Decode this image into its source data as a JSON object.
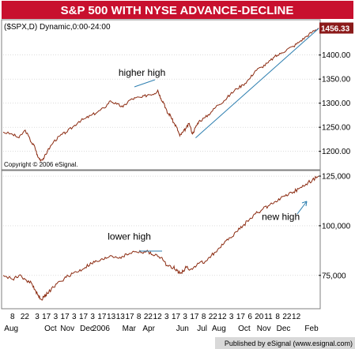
{
  "title": "S&P 500 WITH NYSE ADVANCE-DECLINE",
  "footer": "Published by eSignal (www.esignal.com)",
  "colors": {
    "title_bg": "#c8102e",
    "price_line": "#8b2a10",
    "trend_line": "#2e7fb0",
    "last_label_bg": "#8b1a1a",
    "panel_border": "#7f7f7f",
    "grid": "#c8c8c8"
  },
  "chart_data": [
    {
      "type": "line",
      "panel": "S&P 500 price",
      "header_text": "($SPX,D) Dynamic,0:00-24:00",
      "copyright": "Copyright © 2006 eSignal.",
      "last_value_label": "1456.33",
      "ylim": [
        1165,
        1470
      ],
      "y_ticks": [
        1200.0,
        1250.0,
        1300.0,
        1350.0,
        1400.0
      ],
      "y_tick_labels": [
        "1200.00",
        "1250.00",
        "1300.00",
        "1350.00",
        "1400.00"
      ],
      "x_range": [
        0,
        100
      ],
      "series": [
        {
          "values": [
            [
              0,
              1240
            ],
            [
              3,
              1235
            ],
            [
              5,
              1228
            ],
            [
              7,
              1244
            ],
            [
              9,
              1218
            ],
            [
              10,
              1210
            ],
            [
              11,
              1188
            ],
            [
              12,
              1182
            ],
            [
              13,
              1187
            ],
            [
              14,
              1200
            ],
            [
              16,
              1220
            ],
            [
              18,
              1232
            ],
            [
              20,
              1240
            ],
            [
              22,
              1250
            ],
            [
              24,
              1262
            ],
            [
              26,
              1268
            ],
            [
              28,
              1275
            ],
            [
              30,
              1282
            ],
            [
              32,
              1290
            ],
            [
              34,
              1305
            ],
            [
              36,
              1298
            ],
            [
              38,
              1292
            ],
            [
              40,
              1306
            ],
            [
              42,
              1311
            ],
            [
              44,
              1312
            ],
            [
              46,
              1318
            ],
            [
              48,
              1320
            ],
            [
              49,
              1327
            ],
            [
              50,
              1310
            ],
            [
              51,
              1300
            ],
            [
              52,
              1280
            ],
            [
              53,
              1275
            ],
            [
              54,
              1260
            ],
            [
              55,
              1250
            ],
            [
              56,
              1232
            ],
            [
              57,
              1240
            ],
            [
              58,
              1248
            ],
            [
              59,
              1258
            ],
            [
              60,
              1236
            ],
            [
              61,
              1250
            ],
            [
              62,
              1262
            ],
            [
              64,
              1270
            ],
            [
              66,
              1282
            ],
            [
              68,
              1296
            ],
            [
              70,
              1305
            ],
            [
              72,
              1318
            ],
            [
              74,
              1330
            ],
            [
              76,
              1338
            ],
            [
              78,
              1350
            ],
            [
              80,
              1368
            ],
            [
              82,
              1375
            ],
            [
              84,
              1384
            ],
            [
              86,
              1396
            ],
            [
              88,
              1403
            ],
            [
              90,
              1412
            ],
            [
              92,
              1418
            ],
            [
              94,
              1428
            ],
            [
              96,
              1438
            ],
            [
              98,
              1448
            ],
            [
              100,
              1456
            ]
          ]
        }
      ],
      "annotations": [
        {
          "text": "higher high",
          "x": 44,
          "y": 1357
        }
      ],
      "trend_line": [
        [
          61,
          1228
        ],
        [
          100,
          1455
        ]
      ]
    },
    {
      "type": "line",
      "panel": "NYSE advance-decline",
      "ylim": [
        59000,
        127000
      ],
      "y_ticks": [
        75000,
        100000,
        125000
      ],
      "y_tick_labels": [
        "75,000",
        "100,000",
        "125,000"
      ],
      "x_range": [
        0,
        100
      ],
      "series": [
        {
          "values": [
            [
              0,
              75000
            ],
            [
              3,
              73000
            ],
            [
              5,
              75000
            ],
            [
              7,
              73000
            ],
            [
              9,
              71000
            ],
            [
              10,
              68000
            ],
            [
              11,
              65000
            ],
            [
              12,
              63000
            ],
            [
              13,
              64000
            ],
            [
              14,
              66000
            ],
            [
              16,
              69000
            ],
            [
              18,
              72000
            ],
            [
              20,
              74000
            ],
            [
              22,
              76000
            ],
            [
              24,
              77000
            ],
            [
              26,
              79000
            ],
            [
              28,
              81000
            ],
            [
              30,
              82000
            ],
            [
              32,
              83000
            ],
            [
              34,
              85000
            ],
            [
              36,
              84000
            ],
            [
              38,
              84500
            ],
            [
              40,
              86000
            ],
            [
              42,
              87000
            ],
            [
              44,
              86500
            ],
            [
              46,
              87000
            ],
            [
              48,
              85000
            ],
            [
              50,
              84000
            ],
            [
              52,
              80000
            ],
            [
              54,
              79000
            ],
            [
              55,
              78000
            ],
            [
              56,
              76000
            ],
            [
              57,
              77000
            ],
            [
              58,
              79000
            ],
            [
              60,
              78000
            ],
            [
              62,
              81000
            ],
            [
              64,
              82000
            ],
            [
              66,
              85000
            ],
            [
              68,
              88000
            ],
            [
              70,
              91000
            ],
            [
              72,
              94000
            ],
            [
              74,
              97000
            ],
            [
              76,
              100000
            ],
            [
              78,
              103000
            ],
            [
              80,
              106000
            ],
            [
              82,
              108000
            ],
            [
              84,
              110000
            ],
            [
              86,
              112000
            ],
            [
              88,
              114000
            ],
            [
              90,
              115000
            ],
            [
              92,
              117000
            ],
            [
              94,
              119000
            ],
            [
              96,
              121000
            ],
            [
              98,
              123000
            ],
            [
              100,
              125000
            ]
          ]
        }
      ],
      "annotations": [
        {
          "text": "lower high",
          "x": 40,
          "y": 93000
        },
        {
          "text": "new high",
          "x": 88,
          "y": 103000
        }
      ],
      "x_ticks": {
        "days": [
          {
            "x": 2,
            "label": "8"
          },
          {
            "x": 6,
            "label": "22"
          },
          {
            "x": 10,
            "label": "3"
          },
          {
            "x": 13,
            "label": "17"
          },
          {
            "x": 16,
            "label": "3"
          },
          {
            "x": 19,
            "label": "17"
          },
          {
            "x": 22,
            "label": "3"
          },
          {
            "x": 25,
            "label": "17"
          },
          {
            "x": 28,
            "label": "3"
          },
          {
            "x": 31,
            "label": "17"
          },
          {
            "x": 34,
            "label": "13"
          },
          {
            "x": 37,
            "label": "13"
          },
          {
            "x": 40,
            "label": "17"
          },
          {
            "x": 43,
            "label": "8"
          },
          {
            "x": 46,
            "label": "22"
          },
          {
            "x": 49,
            "label": "12"
          },
          {
            "x": 52,
            "label": "3"
          },
          {
            "x": 55,
            "label": "17"
          },
          {
            "x": 58,
            "label": "3"
          },
          {
            "x": 61,
            "label": "17"
          },
          {
            "x": 64,
            "label": "8"
          },
          {
            "x": 67,
            "label": "22"
          },
          {
            "x": 70,
            "label": "12"
          },
          {
            "x": 73,
            "label": "3"
          },
          {
            "x": 76,
            "label": "17"
          },
          {
            "x": 79,
            "label": "6"
          },
          {
            "x": 82,
            "label": "20"
          },
          {
            "x": 85,
            "label": "11"
          },
          {
            "x": 88,
            "label": "8"
          },
          {
            "x": 91,
            "label": "22"
          },
          {
            "x": 94,
            "label": "12"
          }
        ],
        "months": [
          {
            "x": 4,
            "label": "Aug"
          },
          {
            "x": 18,
            "label": "Oct"
          },
          {
            "x": 24,
            "label": "Nov"
          },
          {
            "x": 31,
            "label": "Dec"
          },
          {
            "x": 36,
            "label": "2006"
          },
          {
            "x": 46,
            "label": "Mar"
          },
          {
            "x": 53,
            "label": "Apr"
          },
          {
            "x": 65,
            "label": "Jun"
          },
          {
            "x": 72,
            "label": "Jul"
          },
          {
            "x": 78,
            "label": "Aug"
          },
          {
            "x": 87,
            "label": "Oct"
          },
          {
            "x": 94,
            "label": "Nov"
          },
          {
            "x": 101,
            "label": "Dec"
          },
          {
            "x": 111,
            "label": "Feb"
          }
        ]
      }
    }
  ]
}
